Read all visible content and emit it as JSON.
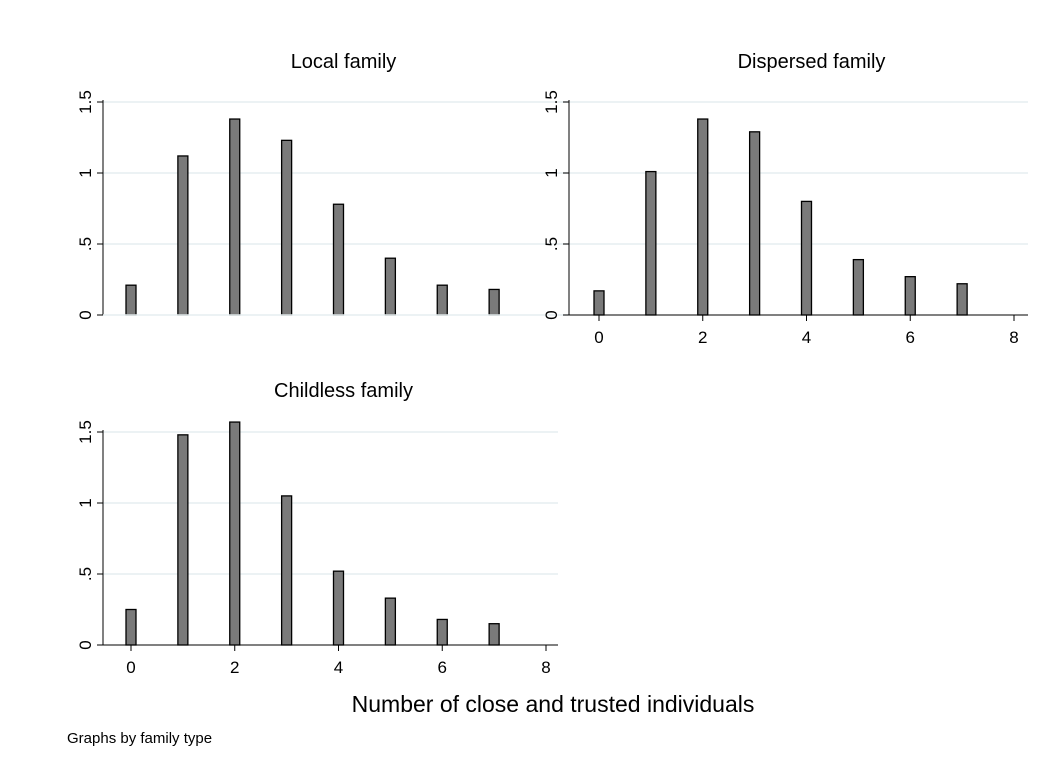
{
  "chart_data": {
    "type": "bar",
    "x_title": "Number of close and trusted individuals",
    "note": "Graphs by family type",
    "x_ticks": [
      0,
      2,
      4,
      6,
      8
    ],
    "y_ticks": [
      {
        "value": 0,
        "label": "0"
      },
      {
        "value": 0.5,
        "label": ".5"
      },
      {
        "value": 1,
        "label": "1"
      },
      {
        "value": 1.5,
        "label": "1.5"
      }
    ],
    "xlim": [
      0,
      8
    ],
    "ylim": [
      0,
      1.5
    ],
    "grid": true,
    "panels": [
      {
        "title": "Local family",
        "categories": [
          0,
          1,
          2,
          3,
          4,
          5,
          6,
          7
        ],
        "values": [
          0.21,
          1.12,
          1.38,
          1.23,
          0.78,
          0.4,
          0.21,
          0.18
        ],
        "show_x_axis": false
      },
      {
        "title": "Dispersed family",
        "categories": [
          0,
          1,
          2,
          3,
          4,
          5,
          6,
          7
        ],
        "values": [
          0.17,
          1.01,
          1.38,
          1.29,
          0.8,
          0.39,
          0.27,
          0.22
        ],
        "show_x_axis": true
      },
      {
        "title": "Childless family",
        "categories": [
          0,
          1,
          2,
          3,
          4,
          5,
          6,
          7
        ],
        "values": [
          0.25,
          1.48,
          1.57,
          1.05,
          0.52,
          0.33,
          0.18,
          0.15
        ],
        "show_x_axis": true
      }
    ]
  }
}
